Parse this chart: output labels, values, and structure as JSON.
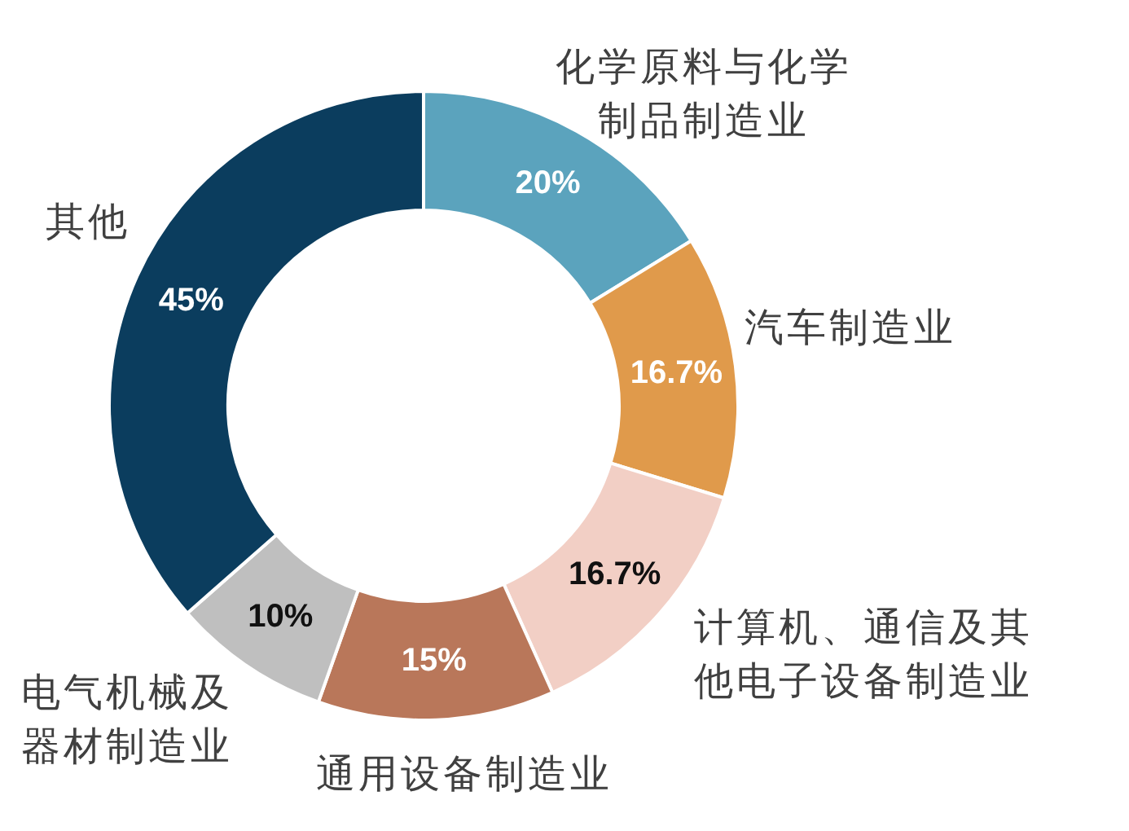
{
  "chart_data": {
    "type": "donut",
    "categories": [
      "化学原料与化学制品制造业",
      "汽车制造业",
      "计算机、通信及其他电子设备制造业",
      "通用设备制造业",
      "电气机械及器材制造业",
      "其他"
    ],
    "values": [
      20,
      16.7,
      16.7,
      15,
      10,
      45
    ],
    "value_labels": [
      "20%",
      "16.7%",
      "16.7%",
      "15%",
      "10%",
      "45%"
    ],
    "colors": [
      "#5ba3bd",
      "#e09a4b",
      "#f2cfc5",
      "#b9775a",
      "#bfbfbf",
      "#0b3d5e"
    ]
  }
}
